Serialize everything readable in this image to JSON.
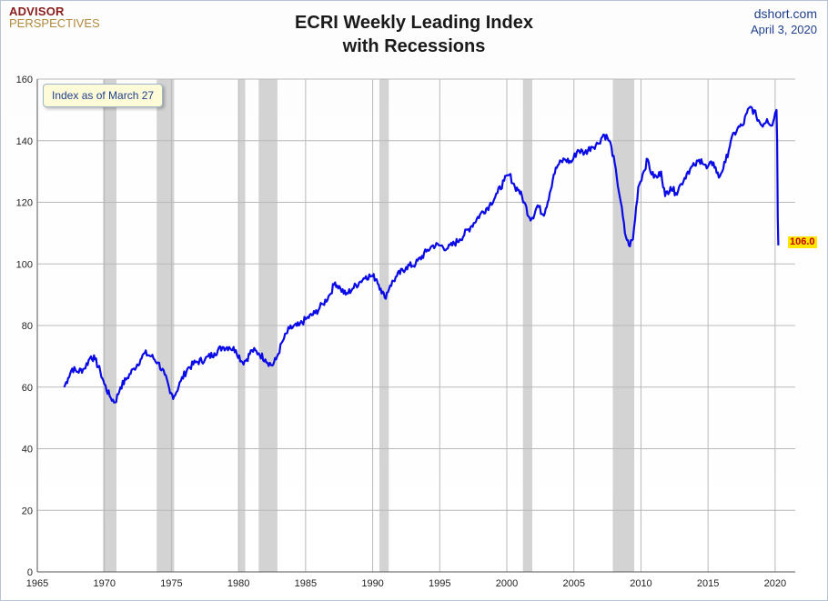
{
  "header": {
    "logo_line1": "ADVISOR",
    "logo_line2": "PERSPECTIVES",
    "title_line1": "ECRI Weekly Leading Index",
    "title_line2": "with Recessions",
    "source": "dshort.com",
    "date": "April 3, 2020"
  },
  "annotation": "Index as of March 27",
  "colors": {
    "line": "#0a0ae6",
    "recession": "#d3d3d3",
    "grid": "#b9b9b9",
    "highlight": "#ffe500"
  },
  "chart_data": {
    "type": "line",
    "title": "ECRI Weekly Leading Index with Recessions",
    "xlabel": "",
    "ylabel": "",
    "xlim": [
      1965,
      2021.5
    ],
    "ylim": [
      0,
      160
    ],
    "x_ticks": [
      1965,
      1970,
      1975,
      1980,
      1985,
      1990,
      1995,
      2000,
      2005,
      2010,
      2015,
      2020
    ],
    "y_ticks": [
      0,
      20,
      40,
      60,
      80,
      100,
      120,
      140,
      160
    ],
    "grid": true,
    "recessions": [
      [
        1969.9,
        1970.9
      ],
      [
        1973.9,
        1975.2
      ],
      [
        1980.0,
        1980.5
      ],
      [
        1981.5,
        1982.9
      ],
      [
        1990.5,
        1991.2
      ],
      [
        2001.2,
        2001.9
      ],
      [
        2007.9,
        2009.5
      ]
    ],
    "last_value_label": "106.0",
    "series": [
      {
        "name": "ECRI Weekly Leading Index",
        "x": [
          1967.0,
          1967.3,
          1967.6,
          1968.0,
          1968.5,
          1969.0,
          1969.3,
          1969.7,
          1970.0,
          1970.4,
          1970.8,
          1971.2,
          1971.7,
          1972.2,
          1972.7,
          1973.0,
          1973.5,
          1974.0,
          1974.5,
          1974.9,
          1975.2,
          1975.7,
          1976.2,
          1976.8,
          1977.5,
          1978.2,
          1978.8,
          1979.3,
          1979.8,
          1980.3,
          1980.6,
          1981.0,
          1981.5,
          1982.0,
          1982.5,
          1982.8,
          1983.3,
          1983.8,
          1984.5,
          1985.0,
          1985.7,
          1986.3,
          1986.8,
          1987.2,
          1987.6,
          1988.0,
          1988.5,
          1989.0,
          1989.5,
          1990.0,
          1990.3,
          1990.6,
          1990.9,
          1991.3,
          1991.8,
          1992.5,
          1993.2,
          1994.0,
          1994.5,
          1995.0,
          1995.6,
          1996.5,
          1997.3,
          1998.0,
          1998.7,
          1999.3,
          1999.8,
          2000.2,
          2000.6,
          2000.9,
          2001.3,
          2001.7,
          2001.9,
          2002.3,
          2002.7,
          2002.9,
          2003.2,
          2003.5,
          2003.8,
          2004.3,
          2004.8,
          2005.3,
          2005.8,
          2006.3,
          2006.8,
          2007.2,
          2007.5,
          2007.8,
          2008.2,
          2008.5,
          2008.8,
          2009.1,
          2009.4,
          2009.8,
          2010.2,
          2010.5,
          2010.8,
          2011.2,
          2011.5,
          2011.8,
          2012.2,
          2012.6,
          2013.0,
          2013.5,
          2014.0,
          2014.5,
          2014.9,
          2015.4,
          2015.8,
          2016.3,
          2016.7,
          2017.2,
          2017.6,
          2017.9,
          2018.2,
          2018.6,
          2019.0,
          2019.4,
          2019.8,
          2020.0,
          2020.1,
          2020.15,
          2020.2,
          2020.24
        ],
        "y": [
          60,
          63,
          66,
          65,
          66,
          70,
          69,
          65,
          61,
          57,
          55,
          60,
          63,
          66,
          69,
          71,
          70,
          68,
          64,
          58,
          57,
          62,
          66,
          68,
          69,
          71,
          73,
          73,
          72,
          68,
          69,
          72,
          71,
          69,
          67,
          69,
          75,
          79,
          80,
          82,
          84,
          87,
          90,
          94,
          92,
          90,
          92,
          94,
          96,
          96,
          95,
          92,
          89,
          93,
          96,
          99,
          100,
          104,
          106,
          106,
          105,
          108,
          112,
          116,
          119,
          123,
          127,
          129,
          125,
          124,
          120,
          115,
          115,
          119,
          116,
          118,
          123,
          129,
          132,
          134,
          133,
          137,
          136,
          138,
          139,
          142,
          141,
          138,
          128,
          120,
          110,
          106,
          108,
          125,
          130,
          134,
          129,
          128,
          130,
          122,
          125,
          123,
          126,
          130,
          132,
          134,
          131,
          133,
          128,
          133,
          140,
          144,
          145,
          149,
          151,
          148,
          145,
          147,
          145,
          149,
          150,
          140,
          115,
          106
        ]
      }
    ]
  }
}
